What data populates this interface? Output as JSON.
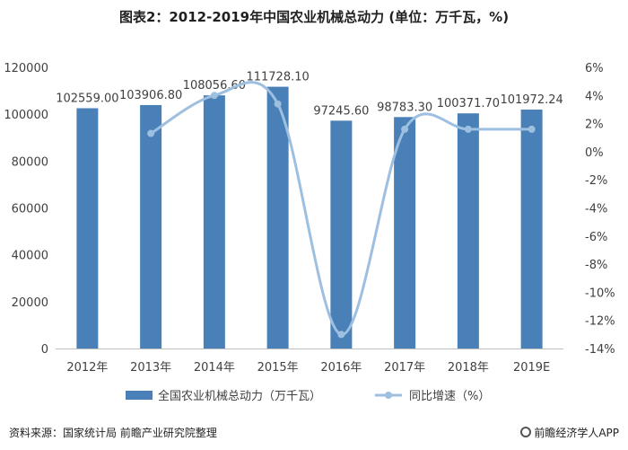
{
  "chart_data": {
    "type": "bar",
    "title": "图表2：2012-2019年中国农业机械总动力 (单位：万千瓦，%)",
    "categories": [
      "2012年",
      "2013年",
      "2014年",
      "2015年",
      "2016年",
      "2017年",
      "2018年",
      "2019E"
    ],
    "series": [
      {
        "name": "全国农业机械总动力（万千瓦）",
        "type": "bar",
        "values": [
          102559.0,
          103906.8,
          108056.6,
          111728.1,
          97245.6,
          98783.3,
          100371.7,
          101972.24
        ],
        "labels": [
          "102559.00",
          "103906.80",
          "108056.60",
          "111728.10",
          "97245.60",
          "98783.30",
          "100371.70",
          "101972.24"
        ]
      },
      {
        "name": "同比增速（%）",
        "type": "line",
        "values": [
          null,
          1.3,
          4.0,
          3.4,
          -13.0,
          1.6,
          1.6,
          1.6
        ]
      }
    ],
    "y_left": {
      "min": 0,
      "max": 120000,
      "step": 20000,
      "ticks": [
        "0",
        "20000",
        "40000",
        "60000",
        "80000",
        "100000",
        "120000"
      ]
    },
    "y_right": {
      "min": -14,
      "max": 6,
      "step": 2,
      "ticks": [
        "-14%",
        "-12%",
        "-10%",
        "-8%",
        "-6%",
        "-4%",
        "-2%",
        "0%",
        "2%",
        "4%",
        "6%"
      ]
    },
    "legend_position": "bottom",
    "grid": false,
    "colors": {
      "bar": "#4a80b8",
      "line": "#9dbfe0",
      "axis": "#bfbfbf",
      "text": "#404040"
    }
  },
  "footer": {
    "source": "资料来源：国家统计局 前瞻产业研究院整理",
    "brand": "前瞻经济学人APP"
  }
}
